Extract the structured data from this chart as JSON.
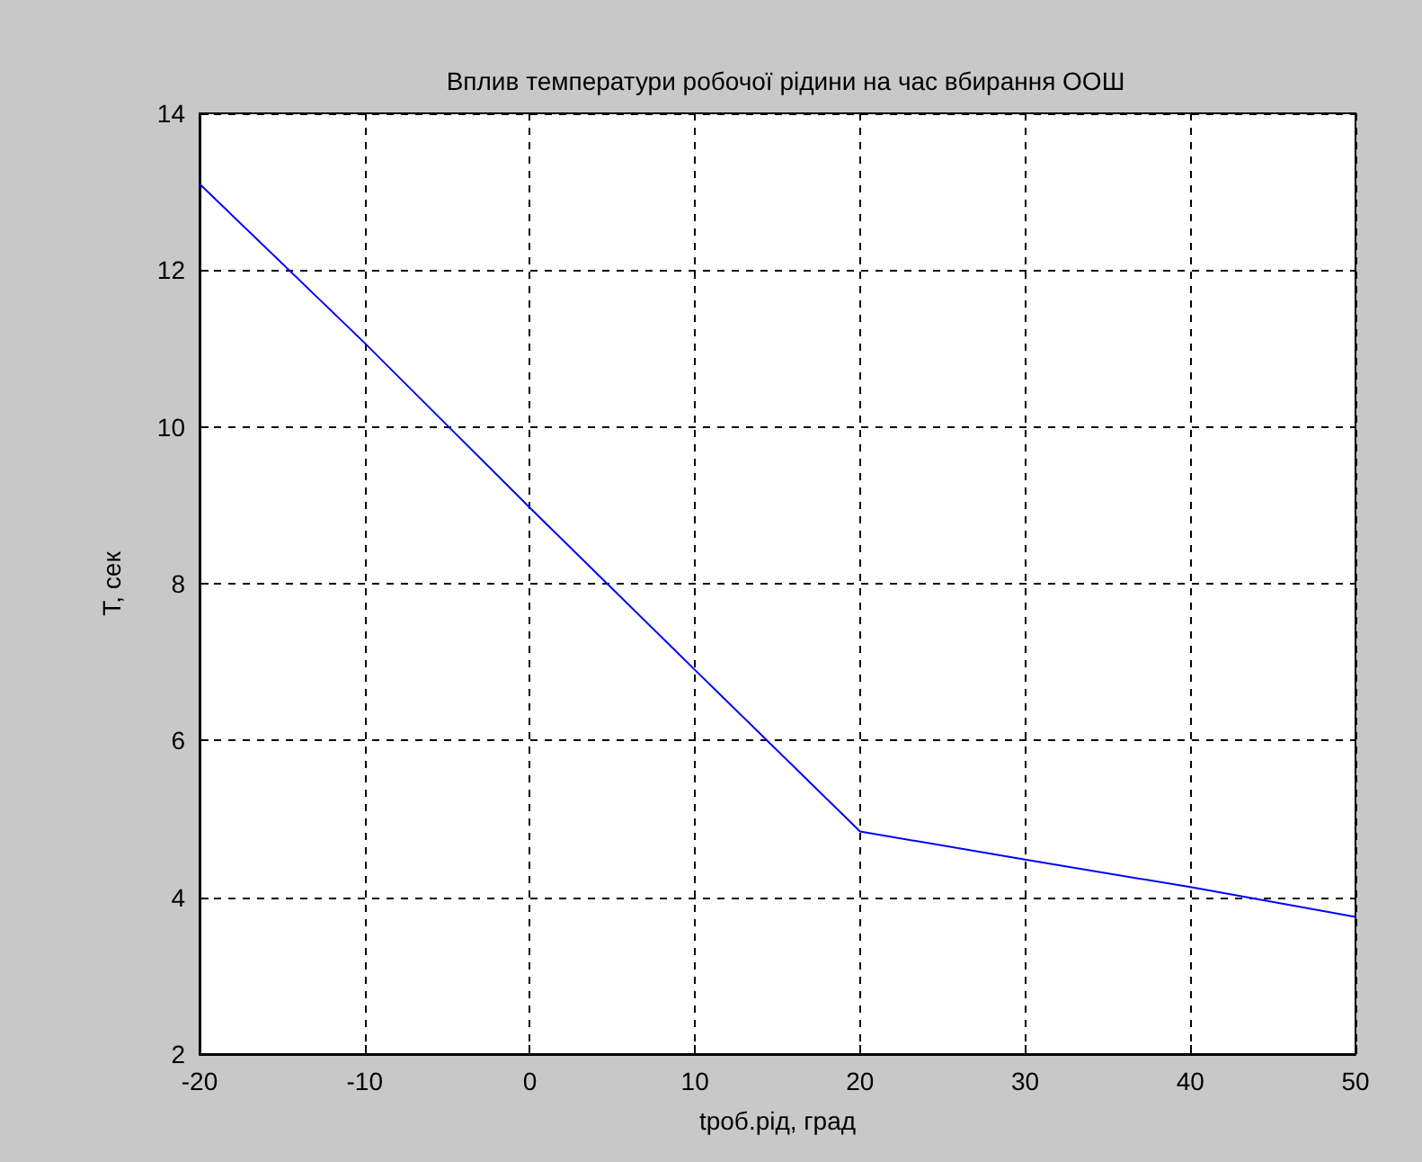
{
  "chart_data": {
    "type": "line",
    "title": "Вплив температури робочої рідини на час вбирання ООШ",
    "xlabel": "tроб.рід, град",
    "ylabel": "T, сек",
    "x": [
      -20,
      -10,
      0,
      10,
      20,
      30,
      40,
      50
    ],
    "series": [
      {
        "color": "#0000ff",
        "values": [
          13.1,
          11.07,
          8.97,
          6.9,
          4.84,
          4.48,
          4.13,
          3.75
        ]
      }
    ],
    "xlim": [
      -20,
      50
    ],
    "xticks": [
      -20,
      -10,
      0,
      10,
      20,
      30,
      40,
      50
    ],
    "ylim": [
      2,
      14
    ],
    "yticks": [
      2,
      4,
      6,
      8,
      10,
      12,
      14
    ],
    "grid": true,
    "marker": "none",
    "line_style": "solid"
  }
}
